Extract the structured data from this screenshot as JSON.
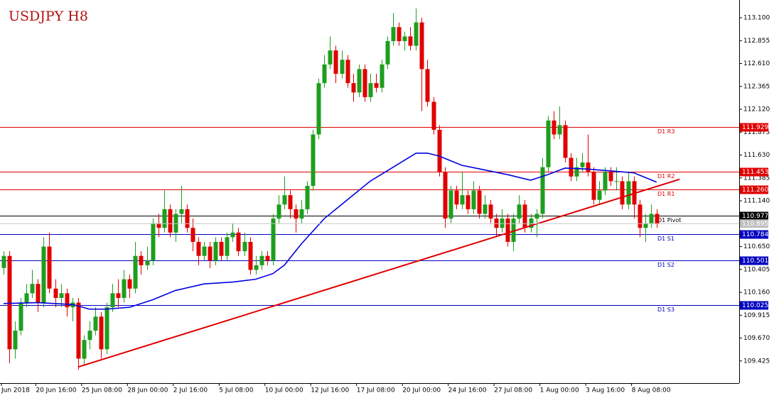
{
  "chart_data": {
    "type": "candlestick",
    "title": "USDJPY H8",
    "up_color": "#1e9e1e",
    "down_color": "#e00000",
    "ylim": [
      109.188,
      113.29
    ],
    "yticks": [
      {
        "value": 113.1,
        "label": "113.100"
      },
      112.855,
      {
        "value": 112.61,
        "label": "112.610"
      },
      112.365,
      {
        "value": 112.12,
        "label": "112.120"
      },
      111.875,
      {
        "value": 111.63,
        "label": "111.630"
      },
      111.385,
      {
        "value": 111.14,
        "label": "111.140"
      },
      {
        "value": 110.65,
        "label": "110.650"
      },
      110.405,
      {
        "value": 110.16,
        "label": "110.160"
      },
      109.915,
      {
        "value": 109.67,
        "label": "109.670"
      },
      109.425
    ],
    "xticks": [
      {
        "value": 0,
        "label": "Jun 2018"
      },
      {
        "value": 6,
        "label": "20 Jun 16:00"
      },
      {
        "value": 14,
        "label": "25 Jun 08:00"
      },
      {
        "value": 22,
        "label": "28 Jun 00:00"
      },
      {
        "value": 30,
        "label": "2 Jul 16:00"
      },
      {
        "value": 38,
        "label": "5 Jul 08:00"
      },
      {
        "value": 46,
        "label": "10 Jul 00:00"
      },
      {
        "value": 54,
        "label": "12 Jul 16:00"
      },
      {
        "value": 62,
        "label": "17 Jul 08:00"
      },
      {
        "value": 70,
        "label": "20 Jul 00:00"
      },
      {
        "value": 78,
        "label": "24 Jul 16:00"
      },
      {
        "value": 86,
        "label": "27 Jul 08:00"
      },
      {
        "value": 94,
        "label": "1 Aug 00:00"
      },
      {
        "value": 102,
        "label": "3 Aug 16:00"
      },
      {
        "value": 110,
        "label": "8 Aug 08:00"
      }
    ],
    "candles": [
      [
        110.42,
        110.6,
        110.35,
        110.55
      ],
      [
        110.55,
        110.6,
        109.4,
        109.55
      ],
      [
        109.55,
        109.85,
        109.45,
        109.75
      ],
      [
        109.75,
        110.1,
        109.7,
        110.05
      ],
      [
        110.05,
        110.25,
        110.0,
        110.15
      ],
      [
        110.15,
        110.4,
        110.1,
        110.25
      ],
      [
        110.25,
        110.3,
        109.95,
        110.05
      ],
      [
        110.05,
        110.75,
        110.0,
        110.65
      ],
      [
        110.65,
        110.8,
        110.15,
        110.2
      ],
      [
        110.2,
        110.3,
        110.0,
        110.1
      ],
      [
        110.1,
        110.25,
        110.0,
        110.15
      ],
      [
        110.15,
        110.2,
        109.9,
        110.0
      ],
      [
        110.0,
        110.1,
        109.85,
        110.05
      ],
      [
        110.05,
        110.1,
        109.33,
        109.45
      ],
      [
        109.45,
        109.7,
        109.38,
        109.65
      ],
      [
        109.65,
        109.85,
        109.55,
        109.75
      ],
      [
        109.75,
        110.0,
        109.7,
        109.9
      ],
      [
        109.9,
        109.95,
        109.45,
        109.55
      ],
      [
        109.55,
        110.05,
        109.5,
        110.0
      ],
      [
        110.0,
        110.25,
        109.95,
        110.15
      ],
      [
        110.15,
        110.3,
        110.0,
        110.1
      ],
      [
        110.1,
        110.4,
        110.05,
        110.3
      ],
      [
        110.3,
        110.35,
        110.1,
        110.2
      ],
      [
        110.2,
        110.7,
        110.15,
        110.55
      ],
      [
        110.55,
        110.6,
        110.35,
        110.45
      ],
      [
        110.45,
        110.65,
        110.4,
        110.5
      ],
      [
        110.5,
        110.95,
        110.45,
        110.9
      ],
      [
        110.9,
        111.0,
        110.75,
        110.85
      ],
      [
        110.85,
        111.25,
        110.8,
        111.05
      ],
      [
        111.05,
        111.1,
        110.75,
        110.8
      ],
      [
        110.8,
        111.05,
        110.7,
        111.0
      ],
      [
        111.0,
        111.3,
        110.9,
        111.05
      ],
      [
        111.05,
        111.1,
        110.8,
        110.85
      ],
      [
        110.85,
        110.95,
        110.6,
        110.7
      ],
      [
        110.7,
        110.75,
        110.45,
        110.55
      ],
      [
        110.55,
        110.7,
        110.5,
        110.65
      ],
      [
        110.65,
        110.7,
        110.42,
        110.5
      ],
      [
        110.5,
        110.75,
        110.45,
        110.7
      ],
      [
        110.7,
        110.75,
        110.5,
        110.55
      ],
      [
        110.55,
        110.8,
        110.5,
        110.75
      ],
      [
        110.75,
        110.9,
        110.7,
        110.8
      ],
      [
        110.8,
        110.85,
        110.55,
        110.6
      ],
      [
        110.6,
        110.8,
        110.55,
        110.7
      ],
      [
        110.7,
        110.75,
        110.35,
        110.4
      ],
      [
        110.4,
        110.55,
        110.35,
        110.45
      ],
      [
        110.45,
        110.6,
        110.4,
        110.55
      ],
      [
        110.55,
        110.6,
        110.45,
        110.5
      ],
      [
        110.5,
        111.0,
        110.45,
        110.95
      ],
      [
        110.95,
        111.2,
        110.9,
        111.1
      ],
      [
        111.1,
        111.4,
        111.05,
        111.2
      ],
      [
        111.2,
        111.25,
        110.95,
        111.05
      ],
      [
        111.05,
        111.1,
        110.8,
        110.95
      ],
      [
        110.95,
        111.15,
        110.9,
        111.05
      ],
      [
        111.05,
        111.35,
        111.0,
        111.3
      ],
      [
        111.3,
        111.9,
        111.25,
        111.85
      ],
      [
        111.85,
        112.45,
        111.8,
        112.4
      ],
      [
        112.4,
        112.7,
        112.35,
        112.6
      ],
      [
        112.6,
        112.9,
        112.55,
        112.75
      ],
      [
        112.75,
        112.8,
        112.4,
        112.5
      ],
      [
        112.5,
        112.75,
        112.45,
        112.65
      ],
      [
        112.65,
        112.7,
        112.35,
        112.4
      ],
      [
        112.4,
        112.5,
        112.2,
        112.3
      ],
      [
        112.3,
        112.6,
        112.25,
        112.55
      ],
      [
        112.55,
        112.6,
        112.2,
        112.25
      ],
      [
        112.25,
        112.5,
        112.2,
        112.4
      ],
      [
        112.4,
        112.5,
        112.3,
        112.35
      ],
      [
        112.35,
        112.65,
        112.3,
        112.6
      ],
      [
        112.6,
        112.9,
        112.55,
        112.85
      ],
      [
        112.85,
        113.15,
        112.8,
        113.0
      ],
      [
        113.0,
        113.05,
        112.8,
        112.85
      ],
      [
        112.85,
        112.95,
        112.75,
        112.9
      ],
      [
        112.9,
        113.0,
        112.75,
        112.8
      ],
      [
        112.8,
        113.2,
        112.75,
        113.05
      ],
      [
        113.05,
        113.1,
        112.1,
        112.55
      ],
      [
        112.55,
        112.65,
        112.15,
        112.2
      ],
      [
        112.2,
        112.25,
        111.85,
        111.9
      ],
      [
        111.9,
        111.95,
        111.4,
        111.45
      ],
      [
        111.45,
        111.5,
        110.85,
        110.95
      ],
      [
        110.95,
        111.3,
        110.9,
        111.25
      ],
      [
        111.25,
        111.3,
        111.05,
        111.1
      ],
      [
        111.1,
        111.45,
        111.05,
        111.2
      ],
      [
        111.2,
        111.25,
        111.0,
        111.05
      ],
      [
        111.05,
        111.35,
        111.0,
        111.25
      ],
      [
        111.25,
        111.3,
        110.95,
        111.0
      ],
      [
        111.0,
        111.2,
        110.95,
        111.1
      ],
      [
        111.1,
        111.15,
        110.9,
        110.95
      ],
      [
        110.95,
        111.0,
        110.75,
        110.85
      ],
      [
        110.85,
        111.05,
        110.8,
        110.95
      ],
      [
        110.95,
        111.0,
        110.65,
        110.7
      ],
      [
        110.7,
        111.0,
        110.6,
        110.95
      ],
      [
        110.95,
        111.2,
        110.9,
        111.1
      ],
      [
        111.1,
        111.15,
        110.8,
        110.85
      ],
      [
        110.85,
        111.0,
        110.8,
        110.95
      ],
      [
        110.95,
        111.05,
        110.75,
        111.0
      ],
      [
        111.0,
        111.6,
        110.95,
        111.5
      ],
      [
        111.5,
        112.05,
        111.45,
        112.0
      ],
      [
        112.0,
        112.1,
        111.8,
        111.85
      ],
      [
        111.85,
        112.15,
        111.8,
        111.95
      ],
      [
        111.95,
        112.0,
        111.55,
        111.6
      ],
      [
        111.6,
        111.65,
        111.35,
        111.4
      ],
      [
        111.4,
        111.6,
        111.35,
        111.5
      ],
      [
        111.5,
        111.65,
        111.45,
        111.55
      ],
      [
        111.55,
        111.85,
        111.4,
        111.45
      ],
      [
        111.45,
        111.5,
        111.1,
        111.15
      ],
      [
        111.15,
        111.35,
        111.1,
        111.25
      ],
      [
        111.25,
        111.5,
        111.2,
        111.45
      ],
      [
        111.45,
        111.5,
        111.3,
        111.35
      ],
      [
        111.35,
        111.5,
        111.25,
        111.35
      ],
      [
        111.35,
        111.4,
        111.05,
        111.1
      ],
      [
        111.1,
        111.45,
        111.05,
        111.35
      ],
      [
        111.35,
        111.4,
        110.95,
        111.1
      ],
      [
        111.1,
        111.15,
        110.75,
        110.85
      ],
      [
        110.85,
        111.0,
        110.7,
        110.9
      ],
      [
        110.9,
        111.1,
        110.85,
        111.0
      ],
      [
        111.0,
        111.05,
        110.85,
        110.895
      ]
    ],
    "moving_average": {
      "color": "#0000e0",
      "x": [
        0,
        6,
        12,
        15,
        18,
        22,
        26,
        30,
        35,
        40,
        44,
        47,
        49,
        52,
        56,
        60,
        64,
        68,
        72,
        74,
        76,
        80,
        84,
        88,
        92,
        95,
        98,
        102,
        106,
        110,
        114
      ],
      "values": [
        110.04,
        110.05,
        110.03,
        109.98,
        109.98,
        110.0,
        110.08,
        110.18,
        110.25,
        110.27,
        110.3,
        110.36,
        110.45,
        110.68,
        110.95,
        111.15,
        111.35,
        111.5,
        111.65,
        111.65,
        111.62,
        111.52,
        111.47,
        111.42,
        111.36,
        111.42,
        111.49,
        111.48,
        111.46,
        111.44,
        111.34
      ]
    },
    "trendline": {
      "color": "#e00000",
      "x": [
        13,
        118
      ],
      "values": [
        109.36,
        111.37
      ]
    },
    "levels": {
      "names": [
        "D1 R3",
        "D1 R2",
        "D1 R1",
        "D1 Pivot",
        "D1 S1",
        "D1 S2",
        "D1 S3"
      ],
      "values": [
        111.929,
        111.453,
        111.26,
        110.977,
        110.784,
        110.501,
        110.025
      ],
      "value_labels": [
        "111.929",
        "111.453",
        "111.260",
        "110.977",
        "110.784",
        "110.501",
        "110.025"
      ],
      "colors": [
        "#e00000",
        "#e00000",
        "#e00000",
        "#000000",
        "#0000c0",
        "#0000c0",
        "#0000c0"
      ]
    },
    "current_price": 110.895
  }
}
